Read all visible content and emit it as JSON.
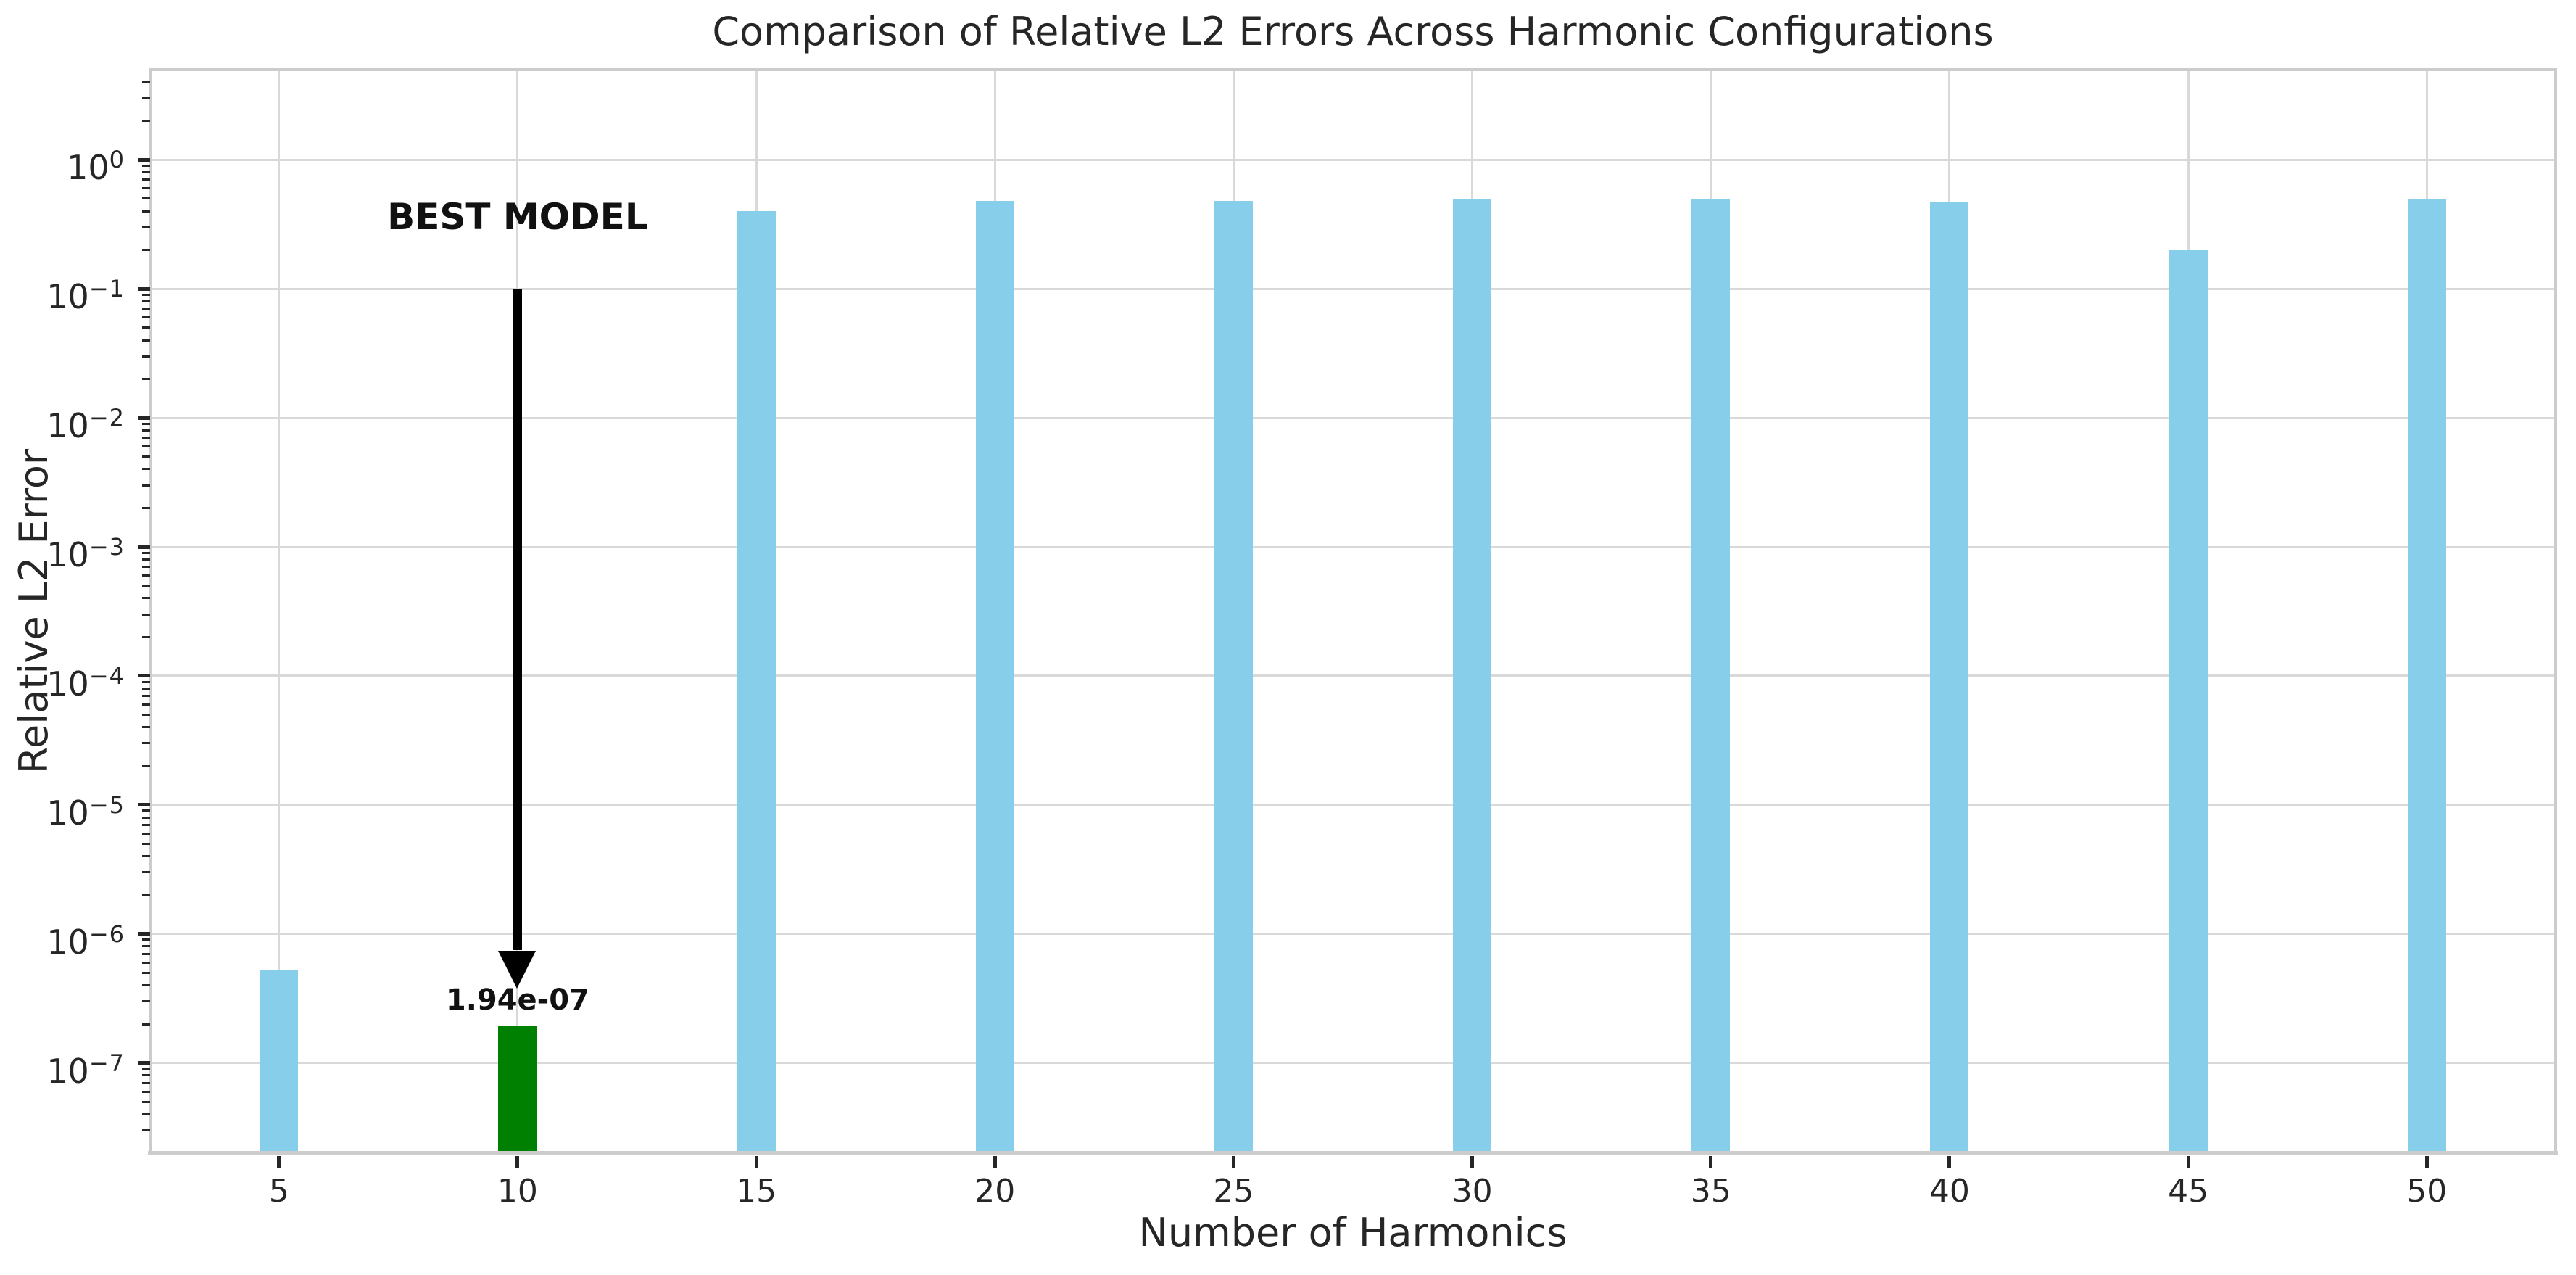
{
  "chart_data": {
    "type": "bar",
    "title": "Comparison of Relative L2 Errors Across Harmonic Configurations",
    "xlabel": "Number of Harmonics",
    "ylabel": "Relative L2 Error",
    "categories": [
      5,
      10,
      15,
      20,
      25,
      30,
      35,
      40,
      45,
      50
    ],
    "values": [
      5.2e-07,
      1.94e-07,
      0.4,
      0.48,
      0.48,
      0.49,
      0.49,
      0.47,
      0.2,
      0.49
    ],
    "bar_color": "#87CEEB",
    "highlight": {
      "index": 1,
      "color": "#008000"
    },
    "y_scale": "log",
    "ylim": [
      2e-08,
      5
    ],
    "xlim": [
      2.3,
      52.7
    ],
    "y_tick_exponents": [
      0,
      -1,
      -2,
      -3,
      -4,
      -5,
      -6,
      -7
    ],
    "x_ticks": [
      5,
      10,
      15,
      20,
      25,
      30,
      35,
      40,
      45,
      50
    ],
    "grid": true,
    "legend": "none",
    "annotation": {
      "text": "BEST MODEL",
      "x": 10,
      "text_y": 0.35,
      "arrow_start_y": 0.1,
      "arrow_tip_y": 3.8e-07,
      "value_label": "1.94e-07",
      "value_label_y": 3e-07
    },
    "colors": {
      "grid": "#d9d9d9",
      "spine": "#cccccc",
      "text": "#262626",
      "annotation_text": "#111111",
      "arrow": "#000000",
      "background": "#ffffff"
    }
  }
}
